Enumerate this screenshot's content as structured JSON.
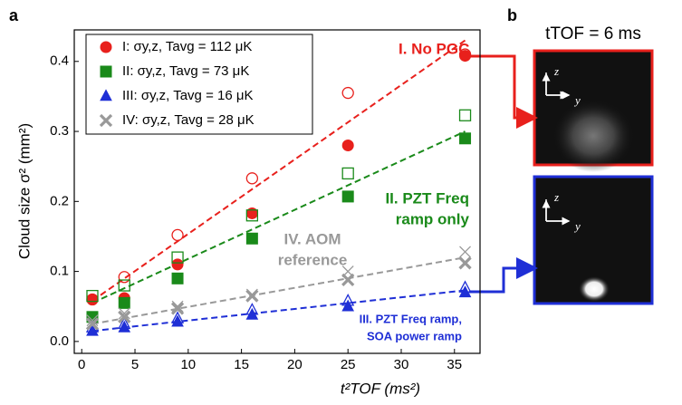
{
  "chart_data": {
    "type": "scatter",
    "panel_labels": [
      "a",
      "b"
    ],
    "x_label": "t²TOF (ms²)",
    "y_label": "Cloud size σ² (mm²)",
    "x": [
      1,
      4,
      9,
      16,
      25,
      36
    ],
    "fit_x": [
      1,
      36
    ],
    "xlim": [
      -0.7,
      37.4
    ],
    "xticks": [
      0,
      5,
      10,
      15,
      20,
      25,
      30,
      35
    ],
    "ylim": [
      -0.017,
      0.445
    ],
    "yticks": [
      {
        "value": 0,
        "label": "0.0"
      },
      0.1,
      0.2,
      0.3,
      0.4
    ],
    "series": [
      {
        "name": "I: σy,z, Tavg = 112 μK",
        "color": "#e8201c",
        "marker": "circle",
        "values": [
          0.06,
          0.062,
          0.11,
          0.183,
          0.28,
          0.408
        ],
        "open_values": [
          0.06,
          0.092,
          0.152,
          0.233,
          0.355,
          0.41
        ],
        "fit": [
          0.058,
          0.43
        ]
      },
      {
        "name": "II: σy,z, Tavg = 73 μK",
        "color": "#1a8a1a",
        "marker": "square",
        "values": [
          0.035,
          0.055,
          0.09,
          0.147,
          0.207,
          0.29
        ],
        "open_values": [
          0.065,
          0.08,
          0.12,
          0.18,
          0.24,
          0.323
        ],
        "fit": [
          0.055,
          0.3
        ]
      },
      {
        "name": "III: σy,z, Tavg = 16 μK",
        "color": "#1f2fd6",
        "marker": "triangle",
        "values": [
          0.015,
          0.02,
          0.028,
          0.038,
          0.05,
          0.07
        ],
        "open_values": [
          0.02,
          0.025,
          0.033,
          0.045,
          0.058,
          0.077
        ],
        "fit": [
          0.015,
          0.073
        ]
      },
      {
        "name": "IV: σy,z, Tavg = 28 μK",
        "color": "#999999",
        "marker": "x",
        "values": [
          0.025,
          0.035,
          0.047,
          0.065,
          0.088,
          0.112
        ],
        "open_values": [
          0.03,
          0.04,
          0.05,
          0.067,
          0.1,
          0.128
        ],
        "fit": [
          0.025,
          0.12
        ]
      }
    ],
    "annotations": [
      {
        "lines": [
          "I. No PGC"
        ],
        "color": "#e8201c"
      },
      {
        "lines": [
          "II. PZT Freq",
          "ramp only"
        ],
        "color": "#1a8a1a"
      },
      {
        "lines": [
          "III. PZT Freq ramp,",
          "SOA power ramp"
        ],
        "color": "#1f2fd6"
      },
      {
        "lines": [
          "IV. AOM",
          "reference"
        ],
        "color": "#999999"
      }
    ],
    "image_title": "tTOF = 6 ms",
    "image_axes": [
      "z",
      "y"
    ]
  }
}
